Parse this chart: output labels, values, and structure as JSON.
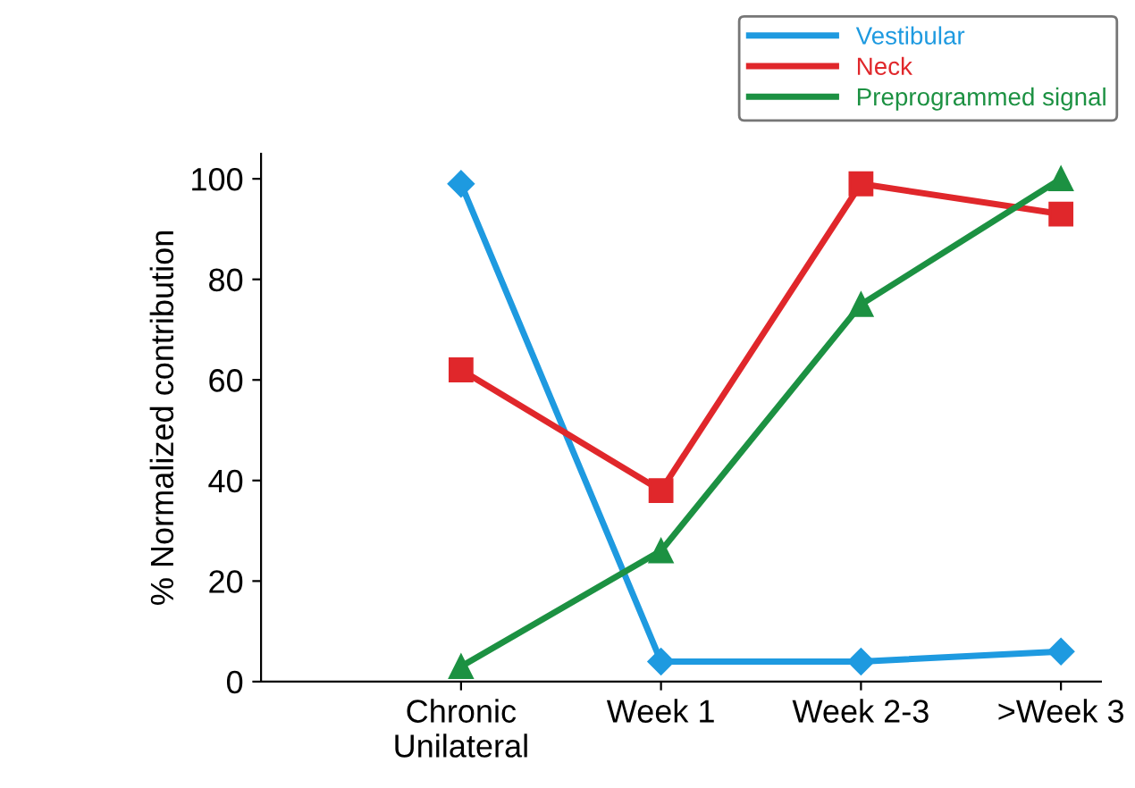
{
  "chart_data": {
    "type": "line",
    "ylabel": "% Normalized contribution",
    "categories": [
      "Chronic\nUnilateral",
      "Week 1",
      "Week 2-3",
      ">Week 3"
    ],
    "series": [
      {
        "name": "Vestibular",
        "color": "#1e9ae0",
        "marker": "diamond",
        "values": [
          99,
          4,
          4,
          6
        ]
      },
      {
        "name": "Neck",
        "color": "#e0272b",
        "marker": "square",
        "values": [
          62,
          38,
          99,
          93
        ]
      },
      {
        "name": "Preprogrammed signal",
        "color": "#1c9142",
        "marker": "triangle",
        "values": [
          3,
          26,
          75,
          100
        ]
      }
    ],
    "ylim": [
      0,
      105
    ],
    "yticks": [
      0,
      20,
      40,
      60,
      80,
      100
    ],
    "grid": false,
    "legend": "top right",
    "line_style": "solid"
  }
}
